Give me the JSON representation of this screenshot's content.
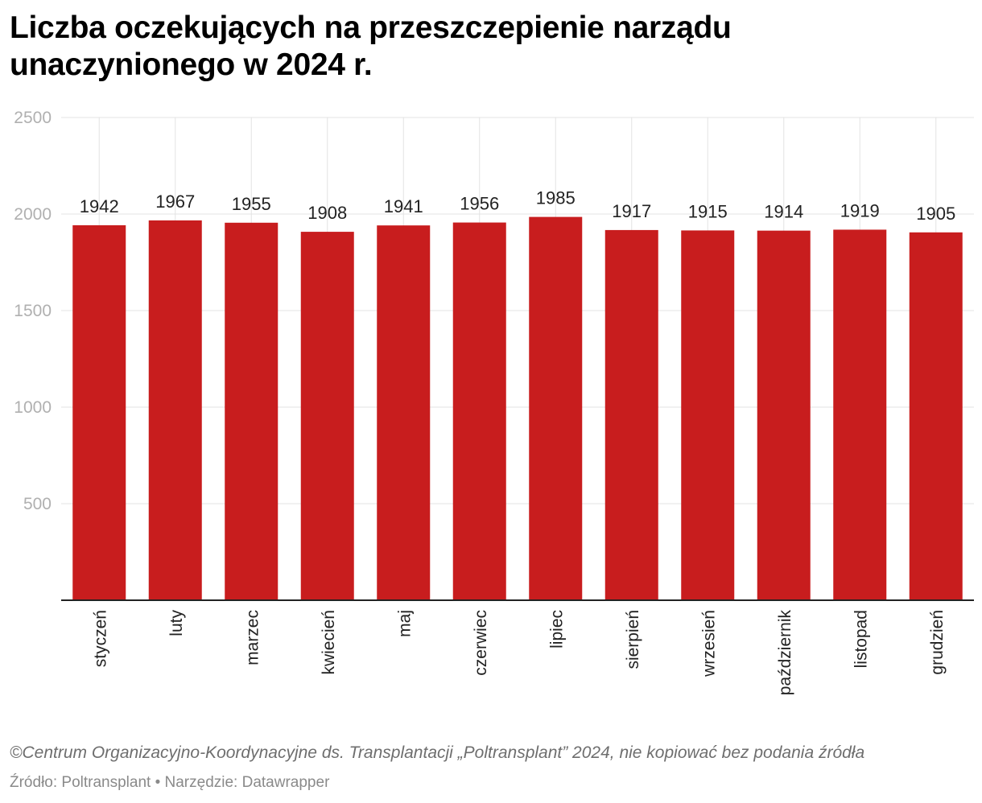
{
  "chart_data": {
    "type": "bar",
    "title": "Liczba oczekujących na przeszczepienie narządu unaczynionego w 2024 r.",
    "categories": [
      "styczeń",
      "luty",
      "marzec",
      "kwiecień",
      "maj",
      "czerwiec",
      "lipiec",
      "sierpień",
      "wrzesień",
      "październik",
      "listopad",
      "grudzień"
    ],
    "values": [
      1942,
      1967,
      1955,
      1908,
      1941,
      1956,
      1985,
      1917,
      1915,
      1914,
      1919,
      1905
    ],
    "ylim": [
      0,
      2500
    ],
    "yticks": [
      500,
      1000,
      1500,
      2000,
      2500
    ],
    "xlabel": "",
    "ylabel": "",
    "bar_color": "#c81d1e",
    "grid": true
  },
  "footer": {
    "credit": "©Centrum Organizacyjno-Koordynacyjne ds. Transplantacji „Poltransplant” 2024, nie kopiować bez podania źródła",
    "source": "Źródło: Poltransplant • Narzędzie: Datawrapper"
  }
}
